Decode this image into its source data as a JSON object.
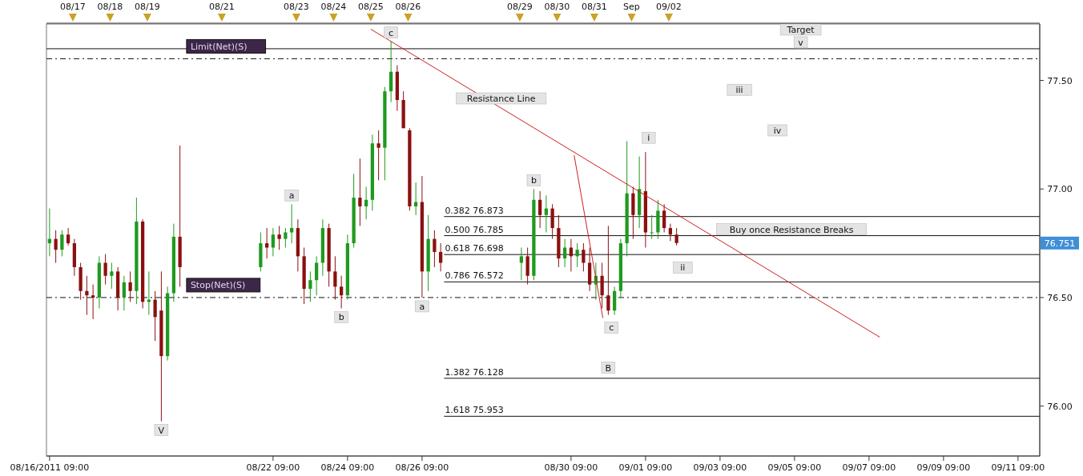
{
  "chart_data": {
    "type": "candlestick",
    "x": [
      "2011-08-16T09:00",
      "2011-08-16T13:00",
      "2011-08-16T17:00",
      "2011-08-16T21:00",
      "2011-08-17T01:00",
      "2011-08-17T05:00",
      "2011-08-17T09:00",
      "2011-08-17T13:00",
      "2011-08-17T17:00",
      "2011-08-17T21:00",
      "2011-08-18T01:00",
      "2011-08-18T05:00",
      "2011-08-18T09:00",
      "2011-08-18T13:00",
      "2011-08-18T17:00",
      "2011-08-18T21:00",
      "2011-08-19T01:00",
      "2011-08-19T05:00",
      "2011-08-19T09:00",
      "2011-08-19T13:00",
      "2011-08-19T17:00",
      "2011-08-19T21:00",
      "2011-08-22T01:00",
      "2011-08-22T05:00",
      "2011-08-22T09:00",
      "2011-08-22T13:00",
      "2011-08-22T17:00",
      "2011-08-22T21:00",
      "2011-08-23T01:00",
      "2011-08-23T05:00",
      "2011-08-23T09:00",
      "2011-08-23T13:00",
      "2011-08-23T17:00",
      "2011-08-23T21:00",
      "2011-08-24T01:00",
      "2011-08-24T05:00",
      "2011-08-24T09:00",
      "2011-08-24T13:00",
      "2011-08-24T17:00",
      "2011-08-24T21:00",
      "2011-08-25T01:00",
      "2011-08-25T05:00",
      "2011-08-25T09:00",
      "2011-08-25T13:00",
      "2011-08-25T17:00",
      "2011-08-25T21:00",
      "2011-08-26T01:00",
      "2011-08-26T05:00",
      "2011-08-26T09:00",
      "2011-08-26T13:00",
      "2011-08-26T17:00",
      "2011-08-26T21:00",
      "2011-08-29T01:00",
      "2011-08-29T05:00",
      "2011-08-29T09:00",
      "2011-08-29T13:00",
      "2011-08-29T17:00",
      "2011-08-29T21:00",
      "2011-08-30T01:00",
      "2011-08-30T05:00",
      "2011-08-30T09:00",
      "2011-08-30T13:00",
      "2011-08-30T17:00",
      "2011-08-30T21:00",
      "2011-08-31T01:00",
      "2011-08-31T05:00",
      "2011-08-31T09:00",
      "2011-08-31T13:00",
      "2011-08-31T17:00",
      "2011-08-31T21:00",
      "2011-09-01T01:00",
      "2011-09-01T05:00",
      "2011-09-01T09:00",
      "2011-09-01T13:00",
      "2011-09-01T17:00",
      "2011-09-01T21:00",
      "2011-09-02T01:00",
      "2011-09-02T05:00"
    ],
    "ohlc": [
      [
        76.75,
        76.91,
        76.69,
        76.77
      ],
      [
        76.77,
        76.81,
        76.66,
        76.72
      ],
      [
        76.72,
        76.81,
        76.69,
        76.79
      ],
      [
        76.79,
        76.82,
        76.74,
        76.75
      ],
      [
        76.75,
        76.77,
        76.6,
        76.64
      ],
      [
        76.64,
        76.66,
        76.49,
        76.53
      ],
      [
        76.53,
        76.6,
        76.42,
        76.51
      ],
      [
        76.51,
        76.56,
        76.4,
        76.5
      ],
      [
        76.5,
        76.69,
        76.45,
        76.66
      ],
      [
        76.66,
        76.7,
        76.56,
        76.6
      ],
      [
        76.6,
        76.66,
        76.54,
        76.62
      ],
      [
        76.62,
        76.64,
        76.44,
        76.5
      ],
      [
        76.5,
        76.6,
        76.44,
        76.57
      ],
      [
        76.57,
        76.62,
        76.48,
        76.53
      ],
      [
        76.53,
        76.96,
        76.47,
        76.85
      ],
      [
        76.85,
        76.86,
        76.45,
        76.48
      ],
      [
        76.48,
        76.62,
        76.42,
        76.49
      ],
      [
        76.49,
        76.53,
        76.3,
        76.41
      ],
      [
        76.44,
        76.62,
        75.93,
        76.23
      ],
      [
        76.23,
        76.55,
        76.21,
        76.52
      ],
      [
        76.52,
        76.84,
        76.48,
        76.78
      ],
      [
        76.78,
        77.2,
        76.55,
        76.64
      ],
      [
        76.64,
        76.8,
        76.62,
        76.75
      ],
      [
        76.75,
        76.82,
        76.68,
        76.73
      ],
      [
        76.73,
        76.82,
        76.69,
        76.79
      ],
      [
        76.79,
        76.83,
        76.72,
        76.77
      ],
      [
        76.77,
        76.82,
        76.73,
        76.8
      ],
      [
        76.8,
        76.93,
        76.75,
        76.82
      ],
      [
        76.82,
        76.86,
        76.62,
        76.69
      ],
      [
        76.69,
        76.73,
        76.47,
        76.54
      ],
      [
        76.54,
        76.62,
        76.48,
        76.58
      ],
      [
        76.58,
        76.69,
        76.51,
        76.66
      ],
      [
        76.66,
        76.86,
        76.6,
        76.82
      ],
      [
        76.82,
        76.84,
        76.55,
        76.62
      ],
      [
        76.62,
        76.69,
        76.49,
        76.55
      ],
      [
        76.55,
        76.6,
        76.45,
        76.51
      ],
      [
        76.51,
        76.79,
        76.49,
        76.75
      ],
      [
        76.75,
        77.07,
        76.73,
        76.96
      ],
      [
        76.96,
        77.14,
        76.83,
        76.92
      ],
      [
        76.92,
        77.01,
        76.86,
        76.95
      ],
      [
        76.95,
        77.25,
        76.9,
        77.21
      ],
      [
        77.21,
        77.27,
        77.04,
        77.19
      ],
      [
        77.19,
        77.47,
        77.04,
        77.45
      ],
      [
        77.45,
        77.68,
        77.4,
        77.54
      ],
      [
        77.54,
        77.57,
        77.36,
        77.41
      ],
      [
        77.41,
        77.45,
        77.28,
        77.28
      ],
      [
        77.27,
        77.28,
        76.9,
        76.92
      ],
      [
        76.92,
        77.03,
        76.88,
        76.94
      ],
      [
        76.94,
        77.06,
        76.5,
        76.62
      ],
      [
        76.62,
        76.88,
        76.53,
        76.77
      ],
      [
        76.77,
        76.81,
        76.64,
        76.71
      ],
      [
        76.71,
        76.75,
        76.62,
        76.66
      ],
      [
        76.66,
        76.73,
        76.58,
        76.69
      ],
      [
        76.69,
        76.73,
        76.56,
        76.6
      ],
      [
        76.6,
        77.0,
        76.58,
        76.95
      ],
      [
        76.95,
        76.99,
        76.82,
        76.88
      ],
      [
        76.88,
        76.97,
        76.8,
        76.91
      ],
      [
        76.91,
        76.93,
        76.77,
        76.82
      ],
      [
        76.82,
        76.88,
        76.64,
        76.68
      ],
      [
        76.68,
        76.77,
        76.64,
        76.73
      ],
      [
        76.73,
        76.77,
        76.62,
        76.69
      ],
      [
        76.69,
        76.75,
        76.64,
        76.72
      ],
      [
        76.72,
        76.75,
        76.62,
        76.66
      ],
      [
        76.66,
        76.73,
        76.53,
        76.56
      ],
      [
        76.56,
        76.66,
        76.49,
        76.6
      ],
      [
        76.6,
        76.66,
        76.45,
        76.51
      ],
      [
        76.51,
        76.83,
        76.42,
        76.44
      ],
      [
        76.44,
        76.55,
        76.42,
        76.53
      ],
      [
        76.53,
        76.77,
        76.5,
        76.75
      ],
      [
        76.75,
        77.22,
        76.69,
        76.98
      ],
      [
        76.98,
        77.01,
        76.77,
        76.88
      ],
      [
        76.88,
        77.15,
        76.82,
        77.0
      ],
      [
        76.99,
        77.17,
        76.73,
        76.8
      ],
      [
        76.8,
        76.88,
        76.77,
        76.8
      ],
      [
        76.8,
        76.95,
        76.77,
        76.9
      ],
      [
        76.9,
        76.93,
        76.8,
        76.82
      ],
      [
        76.82,
        76.84,
        76.76,
        76.79
      ],
      [
        76.79,
        76.82,
        76.74,
        76.751
      ]
    ],
    "series": [
      {
        "type": "line",
        "color": "#cc1f1f",
        "x": [
          "2011-08-25T00:00",
          "2011-09-07T16:00"
        ],
        "values": [
          77.736,
          76.317
        ]
      },
      {
        "type": "line",
        "color": "#cc1f1f",
        "x": [
          "2011-08-30T11:00",
          "2011-08-31T05:30"
        ],
        "values": [
          77.155,
          76.406
        ]
      }
    ],
    "xlim": [
      "2011-08-16T07:00",
      "2011-09-11T23:00"
    ],
    "xticks": [
      {
        "value": "2011-08-16T09:00",
        "label": "08/16/2011 09:00"
      },
      {
        "value": "2011-08-22T09:00",
        "label": "08/22 09:00"
      },
      {
        "value": "2011-08-24T09:00",
        "label": "08/24 09:00"
      },
      {
        "value": "2011-08-26T09:00",
        "label": "08/26 09:00"
      },
      {
        "value": "2011-08-30T09:00",
        "label": "08/30 09:00"
      },
      {
        "value": "2011-09-01T09:00",
        "label": "09/01 09:00"
      },
      {
        "value": "2011-09-03T09:00",
        "label": "09/03 09:00"
      },
      {
        "value": "2011-09-05T09:00",
        "label": "09/05 09:00"
      },
      {
        "value": "2011-09-07T09:00",
        "label": "09/07 09:00"
      },
      {
        "value": "2011-09-09T09:00",
        "label": "09/09 09:00"
      },
      {
        "value": "2011-09-11T09:00",
        "label": "09/11 09:00"
      }
    ],
    "x2lim": [
      "2011-08-16T07:00",
      "2011-09-11T23:00"
    ],
    "x2ticks": [
      {
        "value": "2011-08-17",
        "label": "08/17"
      },
      {
        "value": "2011-08-18",
        "label": "08/18"
      },
      {
        "value": "2011-08-19",
        "label": "08/19"
      },
      {
        "value": "2011-08-21",
        "label": "08/21"
      },
      {
        "value": "2011-08-23",
        "label": "08/23"
      },
      {
        "value": "2011-08-24",
        "label": "08/24"
      },
      {
        "value": "2011-08-25",
        "label": "08/25"
      },
      {
        "value": "2011-08-26",
        "label": "08/26"
      },
      {
        "value": "2011-08-29",
        "label": "08/29"
      },
      {
        "value": "2011-08-30",
        "label": "08/30"
      },
      {
        "value": "2011-08-31",
        "label": "08/31"
      },
      {
        "value": "2011-09-01",
        "label": "Sep"
      },
      {
        "value": "2011-09-02",
        "label": "09/02"
      }
    ],
    "ylim": [
      75.77,
      77.76
    ],
    "yticks": [
      {
        "value": 76,
        "label": "76.00"
      },
      {
        "value": 76.5,
        "label": "76.50"
      },
      {
        "value": 77,
        "label": "77.00"
      },
      {
        "value": 77.5,
        "label": "77.50"
      }
    ],
    "ref_lines": [
      {
        "axis": "y",
        "value": 77.646,
        "line_style": "solid"
      },
      {
        "axis": "y",
        "value": 77.6,
        "label": "Limit(Net)(S)",
        "line_style": "dashed"
      },
      {
        "axis": "y",
        "value": 76.5,
        "label": "Stop(Net)(S)",
        "line_style": "dashed"
      },
      {
        "axis": "y",
        "value": 76.873,
        "label": "0.382 76.873",
        "line_style": "solid"
      },
      {
        "axis": "y",
        "value": 76.785,
        "label": "0.500 76.785",
        "line_style": "solid"
      },
      {
        "axis": "y",
        "value": 76.698,
        "label": "0.618 76.698",
        "line_style": "solid"
      },
      {
        "axis": "y",
        "value": 76.572,
        "label": "0.786 76.572",
        "line_style": "solid"
      },
      {
        "axis": "y",
        "value": 76.128,
        "label": "1.382 76.128",
        "line_style": "solid"
      },
      {
        "axis": "y",
        "value": 75.953,
        "label": "1.618 75.953",
        "line_style": "solid"
      }
    ],
    "annotations": [
      {
        "text": "c",
        "x": "2011-08-25T13:00",
        "y": 77.68
      },
      {
        "text": "a",
        "x": "2011-08-22T21:00",
        "y": 76.93
      },
      {
        "text": "b",
        "x": "2011-08-24T05:00",
        "y": 76.45
      },
      {
        "text": "V",
        "x": "2011-08-19T09:00",
        "y": 75.93
      },
      {
        "text": "b",
        "x": "2011-08-29T09:00",
        "y": 77.0
      },
      {
        "text": "a",
        "x": "2011-08-26T09:00",
        "y": 76.5
      },
      {
        "text": "c",
        "x": "2011-08-31T11:00",
        "y": 76.362
      },
      {
        "text": "B",
        "x": "2011-08-31T09:00",
        "y": 76.177
      },
      {
        "text": "i",
        "x": "2011-09-01T11:00",
        "y": 77.236
      },
      {
        "text": "ii",
        "x": "2011-09-02T09:00",
        "y": 76.638
      },
      {
        "text": "iii",
        "x": "2011-09-03T21:30",
        "y": 77.457
      },
      {
        "text": "iv",
        "x": "2011-09-04T22:00",
        "y": 77.27
      },
      {
        "text": "v",
        "x": "2011-09-05T13:00",
        "y": 77.646
      },
      {
        "text": "Target",
        "x": "2011-09-05T13:00",
        "y": 77.646
      },
      {
        "text": "Buy once Resistance Breaks",
        "x": "2011-09-05T07:00",
        "y": 76.785
      },
      {
        "text": "Resistance Line",
        "x": "2011-08-28T12:00",
        "y": 77.373
      },
      "76.751"
    ]
  }
}
